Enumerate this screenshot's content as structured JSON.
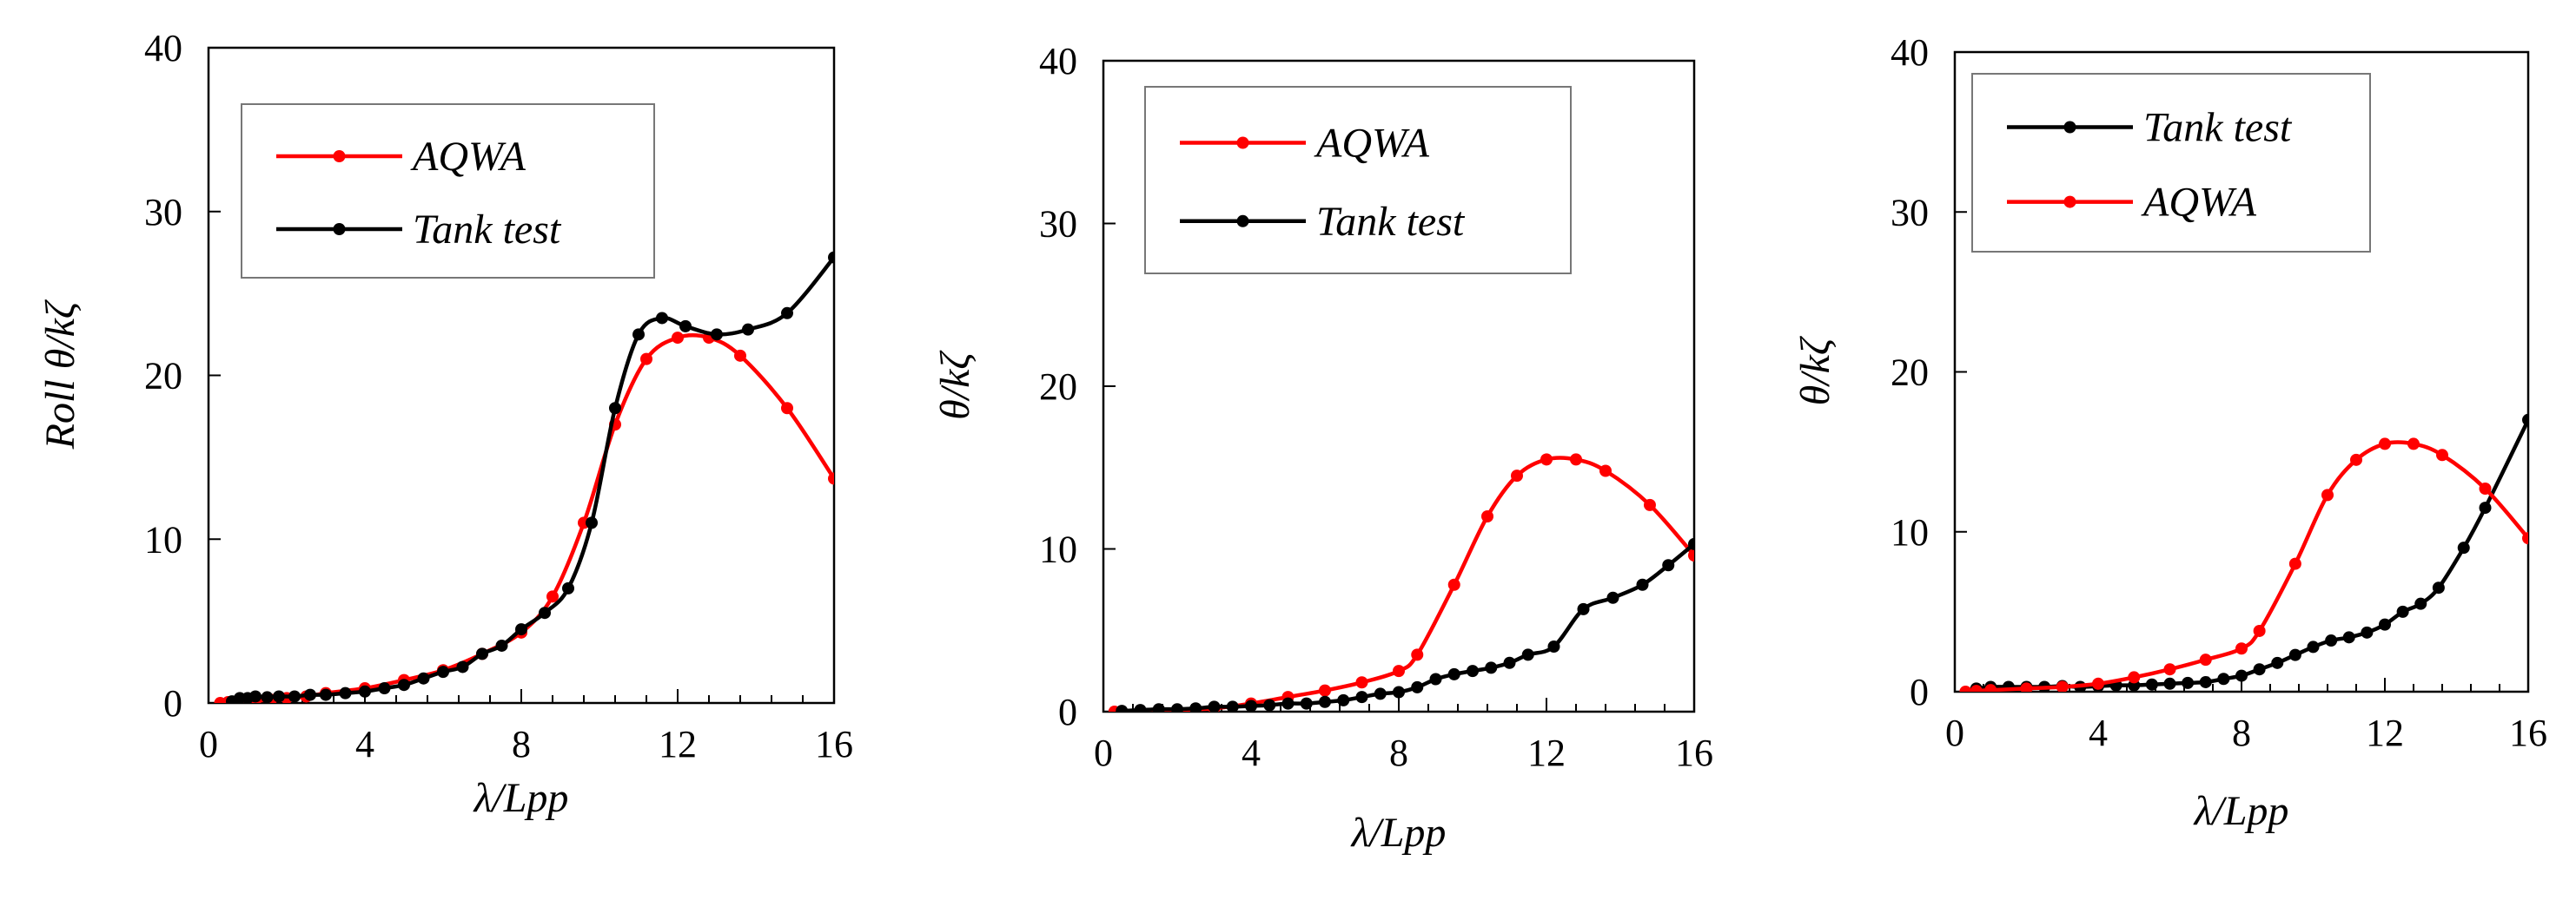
{
  "colors": {
    "aqwa": "#ff0000",
    "tank": "#000000"
  },
  "chart_data": [
    {
      "type": "line",
      "xlabel": "λ/Lpp",
      "ylabel": "Roll θ/kζ",
      "xlim": [
        0,
        16
      ],
      "ylim": [
        0,
        40
      ],
      "xticks": [
        "0",
        "4",
        "8",
        "12",
        "16"
      ],
      "yticks": [
        "0",
        "10",
        "20",
        "30",
        "40"
      ],
      "legend": {
        "placement": "top-left",
        "entries": [
          "AQWA",
          "Tank test"
        ]
      },
      "series": [
        {
          "name": "AQWA",
          "color": "#ff0000",
          "x": [
            0.3,
            0.5,
            0.8,
            1.2,
            1.6,
            2.0,
            2.5,
            3.0,
            4.0,
            5.0,
            6.0,
            7.0,
            8.0,
            8.8,
            9.6,
            10.4,
            11.2,
            12.0,
            12.8,
            13.6,
            14.8,
            16.0
          ],
          "y": [
            0,
            0.05,
            0.1,
            0.15,
            0.2,
            0.3,
            0.4,
            0.6,
            0.9,
            1.4,
            2.0,
            3.0,
            4.3,
            6.5,
            11.0,
            17.0,
            21.0,
            22.3,
            22.3,
            21.2,
            18.0,
            13.7
          ]
        },
        {
          "name": "Tank test",
          "color": "#000000",
          "x": [
            0.6,
            0.8,
            1.0,
            1.2,
            1.5,
            1.8,
            2.2,
            2.6,
            3.0,
            3.5,
            4.0,
            4.5,
            5.0,
            5.5,
            6.0,
            6.5,
            7.0,
            7.5,
            8.0,
            8.6,
            9.2,
            9.8,
            10.4,
            11.0,
            11.6,
            12.2,
            13.0,
            13.8,
            14.8,
            16.0
          ],
          "y": [
            0.1,
            0.3,
            0.3,
            0.4,
            0.35,
            0.4,
            0.4,
            0.5,
            0.5,
            0.6,
            0.7,
            0.9,
            1.1,
            1.5,
            1.9,
            2.2,
            3.0,
            3.5,
            4.5,
            5.5,
            7.0,
            11.0,
            18.0,
            22.5,
            23.5,
            23.0,
            22.5,
            22.8,
            23.8,
            27.2
          ]
        }
      ]
    },
    {
      "type": "line",
      "xlabel": "λ/Lpp",
      "ylabel": "θ/kζ",
      "xlim": [
        0,
        16
      ],
      "ylim": [
        0,
        40
      ],
      "xticks": [
        "0",
        "4",
        "8",
        "12",
        "16"
      ],
      "yticks": [
        "0",
        "10",
        "20",
        "30",
        "40"
      ],
      "legend": {
        "placement": "top-left",
        "entries": [
          "AQWA",
          "Tank test"
        ]
      },
      "series": [
        {
          "name": "AQWA",
          "color": "#ff0000",
          "x": [
            0.3,
            1.0,
            2.0,
            3.0,
            4.0,
            5.0,
            6.0,
            7.0,
            8.0,
            8.5,
            9.5,
            10.4,
            11.2,
            12.0,
            12.8,
            13.6,
            14.8,
            16.0
          ],
          "y": [
            0,
            0.05,
            0.1,
            0.2,
            0.5,
            0.9,
            1.3,
            1.8,
            2.5,
            3.5,
            7.8,
            12.0,
            14.5,
            15.5,
            15.5,
            14.8,
            12.7,
            9.6
          ]
        },
        {
          "name": "Tank test",
          "color": "#000000",
          "x": [
            0.5,
            1.0,
            1.5,
            2.0,
            2.5,
            3.0,
            3.5,
            4.0,
            4.5,
            5.0,
            5.5,
            6.0,
            6.5,
            7.0,
            7.5,
            8.0,
            8.5,
            9.0,
            9.5,
            10.0,
            10.5,
            11.0,
            11.5,
            12.2,
            13.0,
            13.8,
            14.6,
            15.3,
            16.0
          ],
          "y": [
            0.05,
            0.1,
            0.15,
            0.15,
            0.2,
            0.3,
            0.3,
            0.35,
            0.4,
            0.5,
            0.5,
            0.6,
            0.7,
            0.9,
            1.1,
            1.2,
            1.5,
            2.0,
            2.3,
            2.5,
            2.7,
            3.0,
            3.5,
            4.0,
            6.3,
            7.0,
            7.8,
            9.0,
            10.3
          ]
        }
      ]
    },
    {
      "type": "line",
      "xlabel": "λ/Lpp",
      "ylabel": "θ/kζ",
      "xlim": [
        0,
        16
      ],
      "ylim": [
        0,
        40
      ],
      "xticks": [
        "0",
        "4",
        "8",
        "12",
        "16"
      ],
      "yticks": [
        "0",
        "10",
        "20",
        "30",
        "40"
      ],
      "legend": {
        "placement": "top-left",
        "entries": [
          "Tank test",
          "AQWA"
        ]
      },
      "series": [
        {
          "name": "Tank test",
          "color": "#000000",
          "x": [
            0.6,
            1.0,
            1.5,
            2.0,
            2.5,
            3.0,
            3.5,
            4.0,
            4.5,
            5.0,
            5.5,
            6.0,
            6.5,
            7.0,
            7.5,
            8.0,
            8.5,
            9.0,
            9.5,
            10.0,
            10.5,
            11.0,
            11.5,
            12.0,
            12.5,
            13.0,
            13.5,
            14.2,
            14.8,
            16.0
          ],
          "y": [
            0.2,
            0.3,
            0.3,
            0.3,
            0.3,
            0.35,
            0.3,
            0.35,
            0.4,
            0.4,
            0.45,
            0.5,
            0.55,
            0.6,
            0.8,
            1.0,
            1.4,
            1.8,
            2.3,
            2.8,
            3.2,
            3.4,
            3.7,
            4.2,
            5.0,
            5.5,
            6.5,
            9.0,
            11.5,
            17.0
          ]
        },
        {
          "name": "AQWA",
          "color": "#ff0000",
          "x": [
            0.3,
            0.6,
            1.0,
            2.0,
            3.0,
            4.0,
            5.0,
            6.0,
            7.0,
            8.0,
            8.5,
            9.5,
            10.4,
            11.2,
            12.0,
            12.8,
            13.6,
            14.8,
            16.0
          ],
          "y": [
            0,
            0.05,
            0.1,
            0.2,
            0.3,
            0.5,
            0.9,
            1.4,
            2.0,
            2.7,
            3.8,
            8.0,
            12.3,
            14.5,
            15.5,
            15.5,
            14.8,
            12.7,
            9.6
          ]
        }
      ]
    }
  ]
}
